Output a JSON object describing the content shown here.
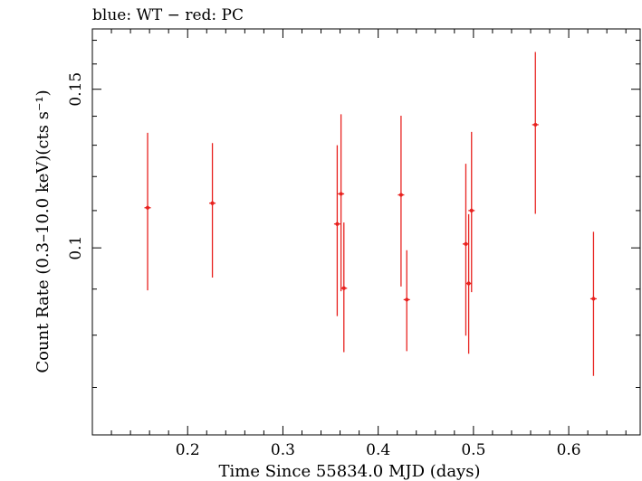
{
  "chart_data": {
    "type": "scatter",
    "title": "blue: WT − red: PC",
    "xlabel": "Time Since 55834.0 MJD (days)",
    "ylabel": "Count Rate (0.3–10.0 keV)(cts s⁻¹)",
    "xlim": [
      0.1,
      0.675
    ],
    "ylim": [
      0.062,
      0.175
    ],
    "y_scale": "log",
    "x_ticks": [
      "0.2",
      "0.3",
      "0.4",
      "0.5",
      "0.6"
    ],
    "y_ticks": [
      "0.1",
      "0.15"
    ],
    "grid": false,
    "series": [
      {
        "color": "#e8221f",
        "points": [
          {
            "x": 0.158,
            "y": 0.1108,
            "ylo": 0.0897,
            "yhi": 0.1342
          },
          {
            "x": 0.226,
            "y": 0.1121,
            "ylo": 0.0927,
            "yhi": 0.1307
          },
          {
            "x": 0.357,
            "y": 0.1063,
            "ylo": 0.084,
            "yhi": 0.13
          },
          {
            "x": 0.361,
            "y": 0.1148,
            "ylo": 0.0895,
            "yhi": 0.1407
          },
          {
            "x": 0.364,
            "y": 0.0902,
            "ylo": 0.0766,
            "yhi": 0.1067
          },
          {
            "x": 0.424,
            "y": 0.1145,
            "ylo": 0.0906,
            "yhi": 0.1402
          },
          {
            "x": 0.43,
            "y": 0.0876,
            "ylo": 0.0768,
            "yhi": 0.0994
          },
          {
            "x": 0.492,
            "y": 0.101,
            "ylo": 0.0799,
            "yhi": 0.124
          },
          {
            "x": 0.495,
            "y": 0.0913,
            "ylo": 0.0763,
            "yhi": 0.109
          },
          {
            "x": 0.498,
            "y": 0.11,
            "ylo": 0.0893,
            "yhi": 0.1345
          },
          {
            "x": 0.565,
            "y": 0.137,
            "ylo": 0.1091,
            "yhi": 0.165
          },
          {
            "x": 0.626,
            "y": 0.0878,
            "ylo": 0.0721,
            "yhi": 0.1042
          }
        ]
      }
    ]
  }
}
